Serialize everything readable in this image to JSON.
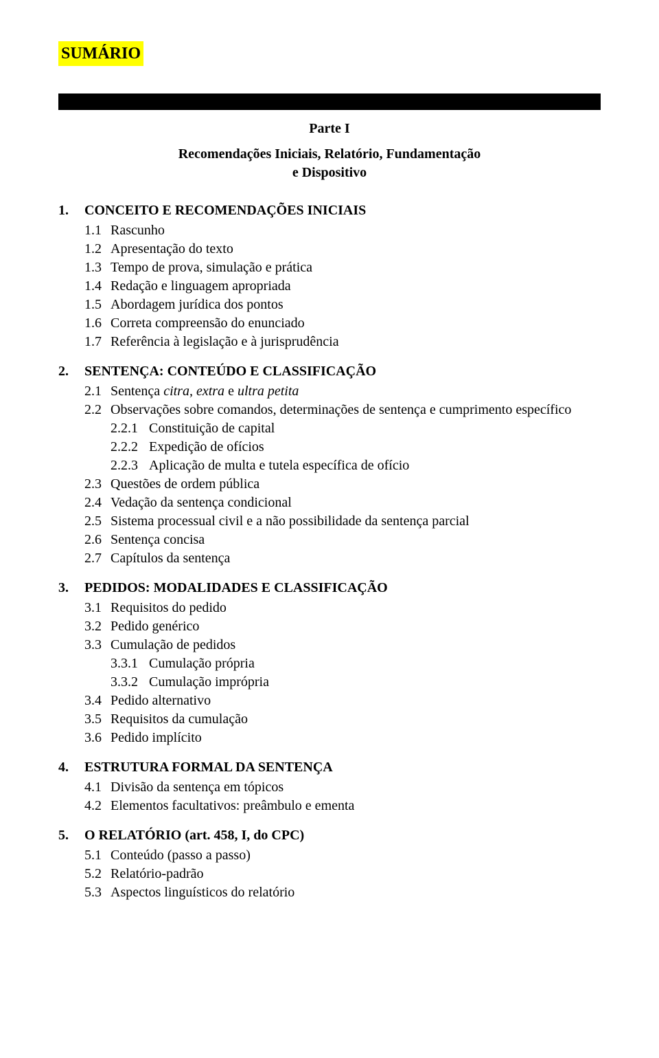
{
  "title": "SUMÁRIO",
  "part": {
    "label": "Parte I",
    "subtitle_line1": "Recomendações Iniciais, Relatório, Fundamentação",
    "subtitle_line2": "e Dispositivo"
  },
  "s1": {
    "num": "1.",
    "head": "CONCEITO E RECOMENDAÇÕES INICIAIS",
    "i1": {
      "num": "1.1",
      "txt": "Rascunho"
    },
    "i2": {
      "num": "1.2",
      "txt": "Apresentação do texto"
    },
    "i3": {
      "num": "1.3",
      "txt": "Tempo de prova, simulação e prática"
    },
    "i4": {
      "num": "1.4",
      "txt": "Redação e linguagem apropriada"
    },
    "i5": {
      "num": "1.5",
      "txt": "Abordagem jurídica dos pontos"
    },
    "i6": {
      "num": "1.6",
      "txt": "Correta compreensão do enunciado"
    },
    "i7": {
      "num": "1.7",
      "txt": "Referência à legislação e à jurisprudência"
    }
  },
  "s2": {
    "num": "2.",
    "head": "SENTENÇA: CONTEÚDO E CLASSIFICAÇÃO",
    "i1": {
      "num": "2.1",
      "pre": "Sentença ",
      "it": "citra, extra",
      "mid": " e ",
      "it2": "ultra petita"
    },
    "i2": {
      "num": "2.2",
      "txt": "Observações sobre comandos, determinações de sentença e cumprimento específico"
    },
    "i2_1": {
      "num": "2.2.1",
      "txt": "Constituição de capital"
    },
    "i2_2": {
      "num": "2.2.2",
      "txt": "Expedição de ofícios"
    },
    "i2_3": {
      "num": "2.2.3",
      "txt": "Aplicação de multa e tutela específica de ofício"
    },
    "i3": {
      "num": "2.3",
      "txt": "Questões de ordem pública"
    },
    "i4": {
      "num": "2.4",
      "txt": "Vedação da sentença condicional"
    },
    "i5": {
      "num": "2.5",
      "txt": "Sistema processual civil e a não possibilidade da sentença parcial"
    },
    "i6": {
      "num": "2.6",
      "txt": "Sentença concisa"
    },
    "i7": {
      "num": "2.7",
      "txt": "Capítulos da sentença"
    }
  },
  "s3": {
    "num": "3.",
    "head": "PEDIDOS: MODALIDADES E CLASSIFICAÇÃO",
    "i1": {
      "num": "3.1",
      "txt": "Requisitos do pedido"
    },
    "i2": {
      "num": "3.2",
      "txt": "Pedido genérico"
    },
    "i3": {
      "num": "3.3",
      "txt": "Cumulação de pedidos"
    },
    "i3_1": {
      "num": "3.3.1",
      "txt": "Cumulação própria"
    },
    "i3_2": {
      "num": "3.3.2",
      "txt": "Cumulação imprópria"
    },
    "i4": {
      "num": "3.4",
      "txt": "Pedido alternativo"
    },
    "i5": {
      "num": "3.5",
      "txt": "Requisitos da cumulação"
    },
    "i6": {
      "num": "3.6",
      "txt": "Pedido implícito"
    }
  },
  "s4": {
    "num": "4.",
    "head": "ESTRUTURA FORMAL DA SENTENÇA",
    "i1": {
      "num": "4.1",
      "txt": "Divisão da sentença em tópicos"
    },
    "i2": {
      "num": "4.2",
      "txt": "Elementos facultativos: preâmbulo e ementa"
    }
  },
  "s5": {
    "num": "5.",
    "head": "O RELATÓRIO (art. 458, I, do CPC)",
    "i1": {
      "num": "5.1",
      "txt": "Conteúdo (passo a passo)"
    },
    "i2": {
      "num": "5.2",
      "txt": "Relatório-padrão"
    },
    "i3": {
      "num": "5.3",
      "txt": "Aspectos linguísticos do relatório"
    }
  }
}
